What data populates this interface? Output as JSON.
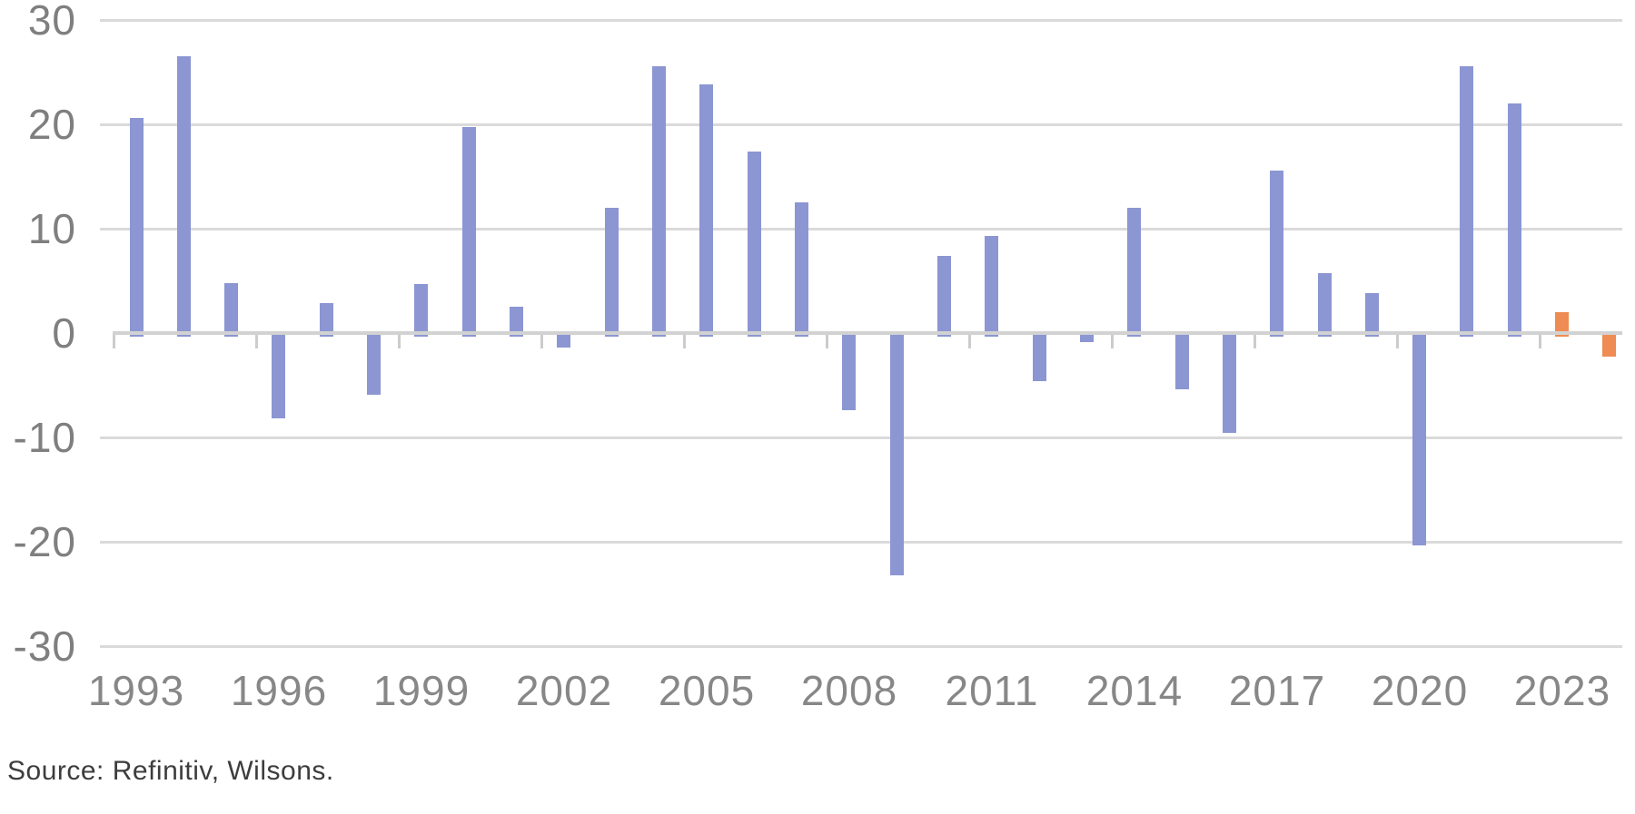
{
  "chart_data": {
    "type": "bar",
    "title": "",
    "xlabel": "",
    "ylabel": "",
    "categories": [
      1993,
      1994,
      1995,
      1996,
      1997,
      1998,
      1999,
      2000,
      2001,
      2002,
      2003,
      2004,
      2005,
      2006,
      2007,
      2008,
      2009,
      2010,
      2011,
      2012,
      2013,
      2014,
      2015,
      2016,
      2017,
      2018,
      2019,
      2020,
      2021,
      2022,
      2023,
      2024
    ],
    "values": [
      20.6,
      26.5,
      4.8,
      -8.0,
      2.9,
      -5.7,
      4.7,
      19.7,
      2.5,
      -1.2,
      12.0,
      25.6,
      23.8,
      17.4,
      12.5,
      -7.2,
      -23.0,
      7.4,
      9.3,
      -4.4,
      -0.7,
      12.0,
      -5.2,
      -9.4,
      15.6,
      5.7,
      3.8,
      -20.2,
      25.6,
      22.0,
      2.0,
      -2.1
    ],
    "highlight_categories": [
      2023,
      2024
    ],
    "bar_color": "#8b96d2",
    "highlight_color": "#ee8c53",
    "ylim": [
      -30,
      30
    ],
    "ytick_labels": [
      "30",
      "20",
      "10",
      "0",
      "-10",
      "-20",
      "-30"
    ],
    "xtick_labels": [
      "1993",
      "1996",
      "1999",
      "2002",
      "2005",
      "2008",
      "2011",
      "2014",
      "2017",
      "2020",
      "2023"
    ],
    "grid": "horizontal",
    "legend": "none"
  },
  "footer": {
    "source": "Source: Refinitiv, Wilsons."
  }
}
